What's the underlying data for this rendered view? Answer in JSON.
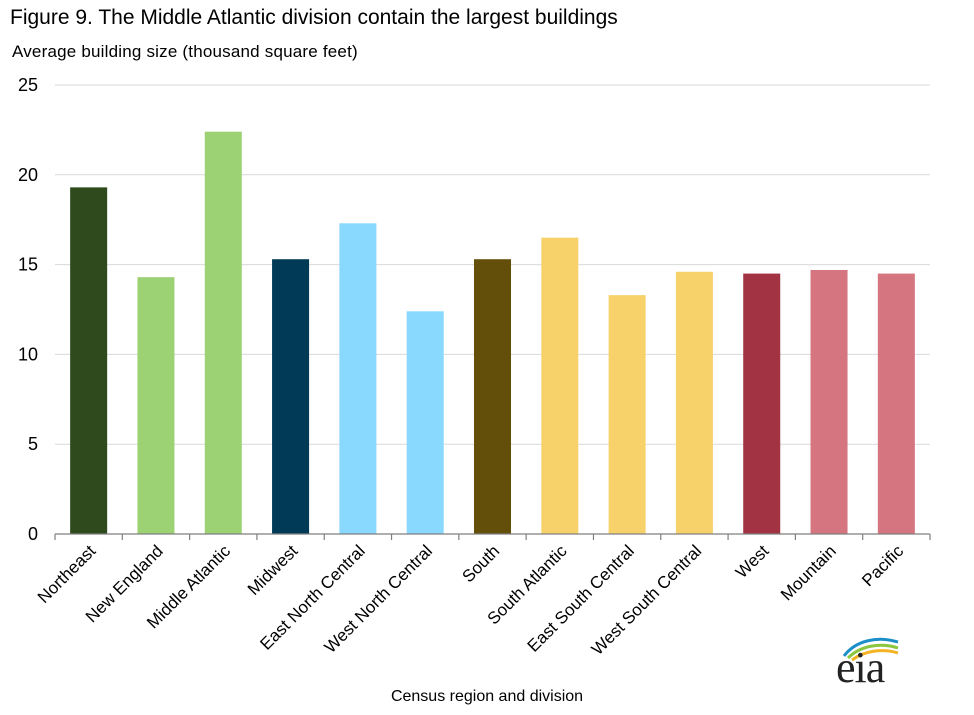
{
  "chart_data": {
    "type": "bar",
    "title": "Figure 9.  The Middle Atlantic division contain the largest buildings",
    "ylabel": "Average building size (thousand square feet)",
    "xlabel": "Census region and division",
    "categories": [
      "Northeast",
      "New England",
      "Middle Atlantic",
      "Midwest",
      "East North Central",
      "West North Central",
      "South",
      "South Atlantic",
      "East South Central",
      "West South Central",
      "West",
      "Mountain",
      "Pacific"
    ],
    "values": [
      19.3,
      14.3,
      22.4,
      15.3,
      17.3,
      12.4,
      15.3,
      16.5,
      13.3,
      14.6,
      14.5,
      14.7,
      14.5
    ],
    "colors": [
      "#2f4a1d",
      "#9cd174",
      "#9cd174",
      "#003a57",
      "#89d8fd",
      "#89d8fd",
      "#644f0a",
      "#f7d26b",
      "#f7d26b",
      "#f7d26b",
      "#a23342",
      "#d57580",
      "#d57580"
    ],
    "ylim": [
      0,
      25
    ],
    "yticks": [
      0,
      5,
      10,
      15,
      20,
      25
    ],
    "grid": true,
    "legend": "none"
  },
  "logo": {
    "text": "eia"
  }
}
